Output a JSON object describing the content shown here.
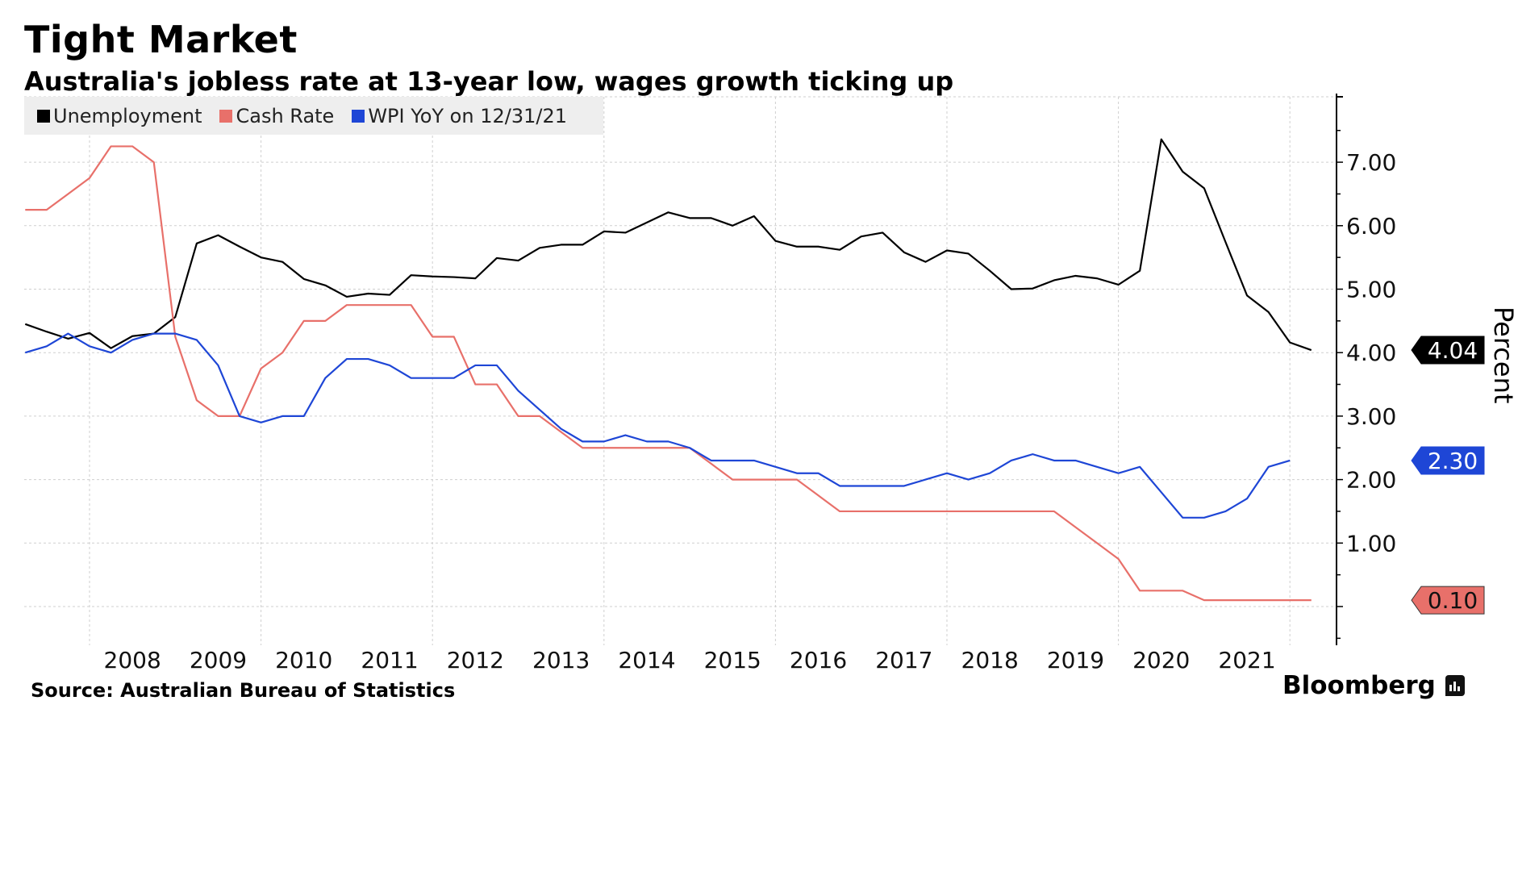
{
  "header": {
    "title": "Tight Market",
    "subtitle": "Australia's jobless rate at 13-year low, wages growth ticking up"
  },
  "footer": {
    "source": "Source: Australian Bureau of Statistics",
    "brand": "Bloomberg"
  },
  "chart_data": {
    "type": "line",
    "title": "Tight Market",
    "subtitle": "Australia's jobless rate at 13-year low, wages growth ticking up",
    "ylabel": "Percent",
    "xlabel": "",
    "ylim": [
      -0.6,
      8.0
    ],
    "y_ticks": [
      "1.00",
      "2.00",
      "3.00",
      "4.00",
      "5.00",
      "6.00",
      "7.00"
    ],
    "x_ticks": [
      "2008",
      "2009",
      "2010",
      "2011",
      "2012",
      "2013",
      "2014",
      "2015",
      "2016",
      "2017",
      "2018",
      "2019",
      "2020",
      "2021"
    ],
    "grid": true,
    "y_axis_side": "right",
    "legend_position": "top-left",
    "x_start": "2007-03-31",
    "x_frequency": "quarterly",
    "series": [
      {
        "name": "Unemployment",
        "color": "#000000",
        "last_label": "4.04",
        "values": [
          4.45,
          4.33,
          4.22,
          4.31,
          4.07,
          4.26,
          4.3,
          4.56,
          5.72,
          5.85,
          5.67,
          5.5,
          5.43,
          5.16,
          5.06,
          4.88,
          4.93,
          4.91,
          5.22,
          5.2,
          5.19,
          5.17,
          5.49,
          5.45,
          5.65,
          5.7,
          5.7,
          5.91,
          5.89,
          6.05,
          6.21,
          6.12,
          6.12,
          6.0,
          6.15,
          5.76,
          5.67,
          5.67,
          5.62,
          5.83,
          5.89,
          5.58,
          5.43,
          5.61,
          5.56,
          5.29,
          5.0,
          5.01,
          5.14,
          5.21,
          5.17,
          5.07,
          5.29,
          7.36,
          6.85,
          6.59,
          5.74,
          4.9,
          4.64,
          4.16,
          4.04
        ]
      },
      {
        "name": "Cash Rate",
        "color": "#e8706a",
        "last_label": "0.10",
        "values": [
          6.25,
          6.25,
          6.5,
          6.75,
          7.25,
          7.25,
          7.0,
          4.25,
          3.25,
          3.0,
          3.0,
          3.75,
          4.0,
          4.5,
          4.5,
          4.75,
          4.75,
          4.75,
          4.75,
          4.25,
          4.25,
          3.5,
          3.5,
          3.0,
          3.0,
          2.75,
          2.5,
          2.5,
          2.5,
          2.5,
          2.5,
          2.5,
          2.25,
          2.0,
          2.0,
          2.0,
          2.0,
          1.75,
          1.5,
          1.5,
          1.5,
          1.5,
          1.5,
          1.5,
          1.5,
          1.5,
          1.5,
          1.5,
          1.5,
          1.25,
          1.0,
          0.75,
          0.25,
          0.25,
          0.25,
          0.1,
          0.1,
          0.1,
          0.1,
          0.1,
          0.1
        ]
      },
      {
        "name": "WPI YoY on 12/31/21",
        "color": "#1e46d6",
        "last_label": "2.30",
        "values": [
          4.0,
          4.1,
          4.3,
          4.1,
          4.0,
          4.2,
          4.3,
          4.3,
          4.2,
          3.8,
          3.0,
          2.9,
          3.0,
          3.0,
          3.6,
          3.9,
          3.9,
          3.8,
          3.6,
          3.6,
          3.6,
          3.8,
          3.8,
          3.4,
          3.1,
          2.8,
          2.6,
          2.6,
          2.7,
          2.6,
          2.6,
          2.5,
          2.3,
          2.3,
          2.3,
          2.2,
          2.1,
          2.1,
          1.9,
          1.9,
          1.9,
          1.9,
          2.0,
          2.1,
          2.0,
          2.1,
          2.3,
          2.4,
          2.3,
          2.3,
          2.2,
          2.1,
          2.2,
          1.8,
          1.4,
          1.4,
          1.5,
          1.7,
          2.2,
          2.3
        ]
      }
    ]
  }
}
